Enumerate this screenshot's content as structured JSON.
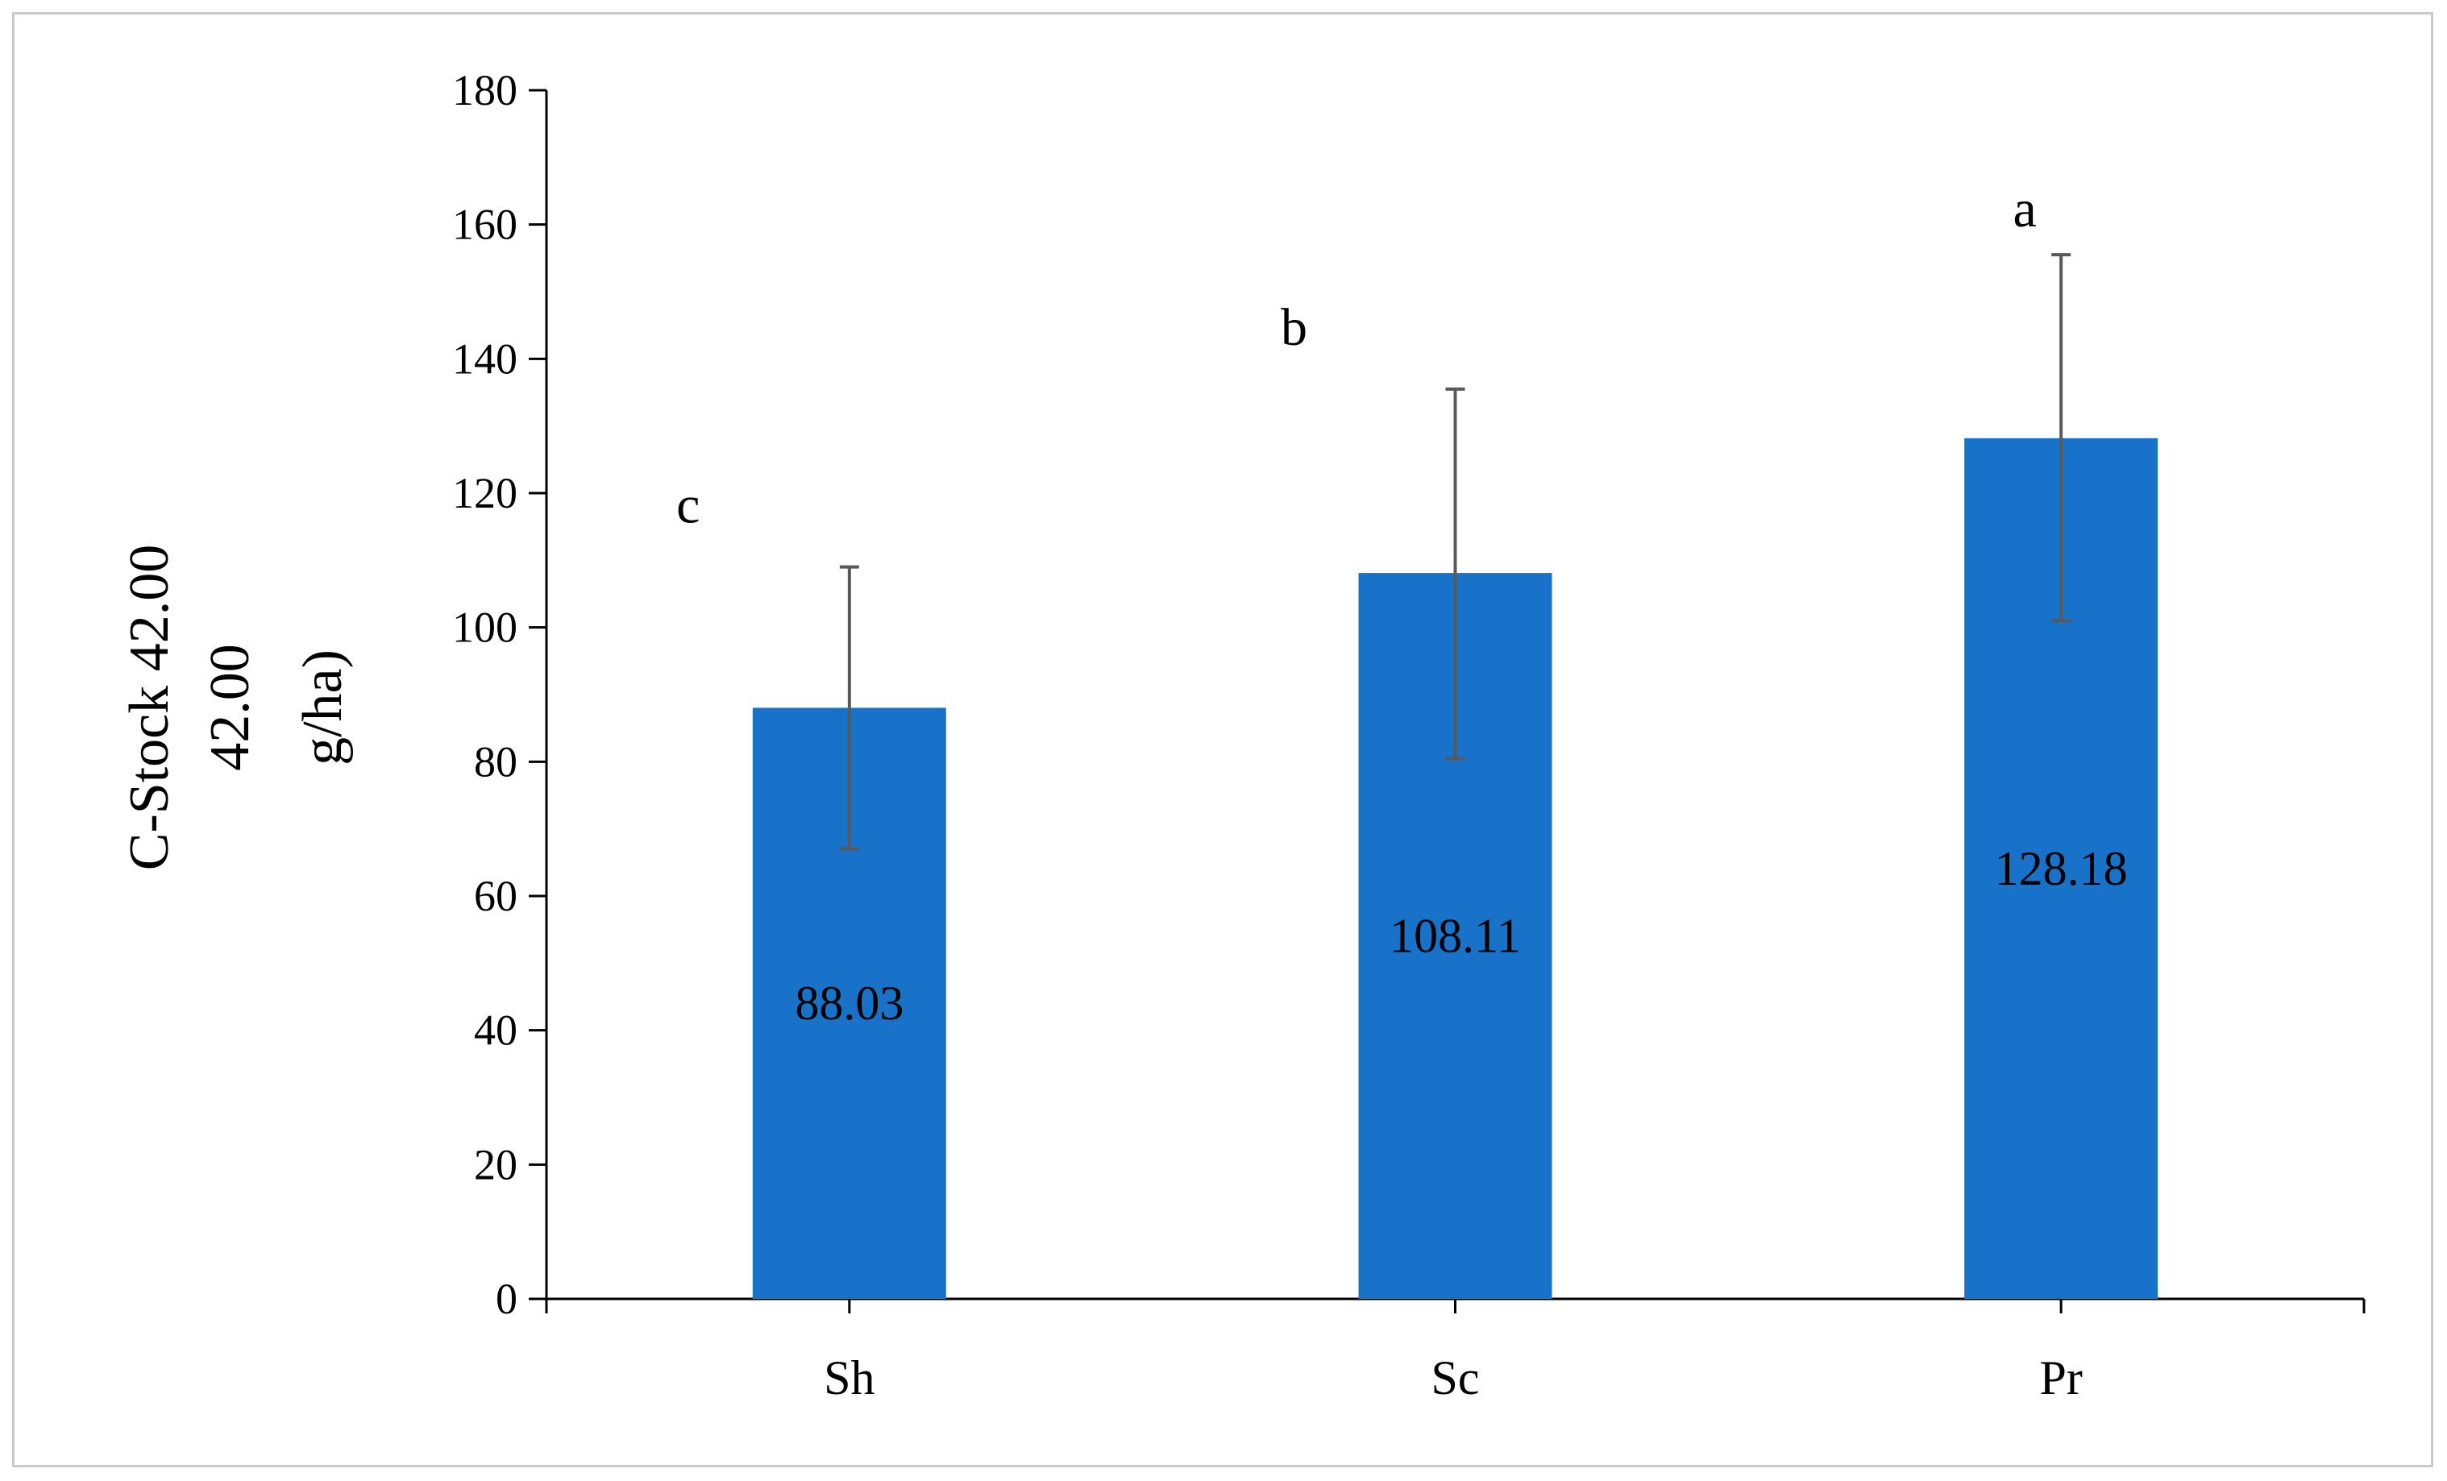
{
  "chart_data": {
    "type": "bar",
    "title": "",
    "xlabel": "",
    "ylabel_lines": [
      "C-Stock 42.00",
      "42.00",
      "g/ha)"
    ],
    "categories": [
      "Sh",
      "Sc",
      "Pr"
    ],
    "values": [
      88.03,
      108.11,
      128.18
    ],
    "value_labels": [
      "88.03",
      "108.11",
      "128.18"
    ],
    "error_bars": [
      {
        "low": 67,
        "high": 109
      },
      {
        "low": 80.5,
        "high": 135.5
      },
      {
        "low": 101,
        "high": 155.5
      }
    ],
    "significance_letters": [
      "c",
      "b",
      "a"
    ],
    "ylim": [
      0,
      180
    ],
    "yticks": [
      "0",
      "20",
      "40",
      "60",
      "80",
      "100",
      "120",
      "140",
      "160",
      "180"
    ],
    "grid": false,
    "legend": "none",
    "colors": {
      "bar": "#1872C8",
      "error_bar": "#595959",
      "axis": "#000000",
      "border": "#c9c9c9"
    }
  }
}
